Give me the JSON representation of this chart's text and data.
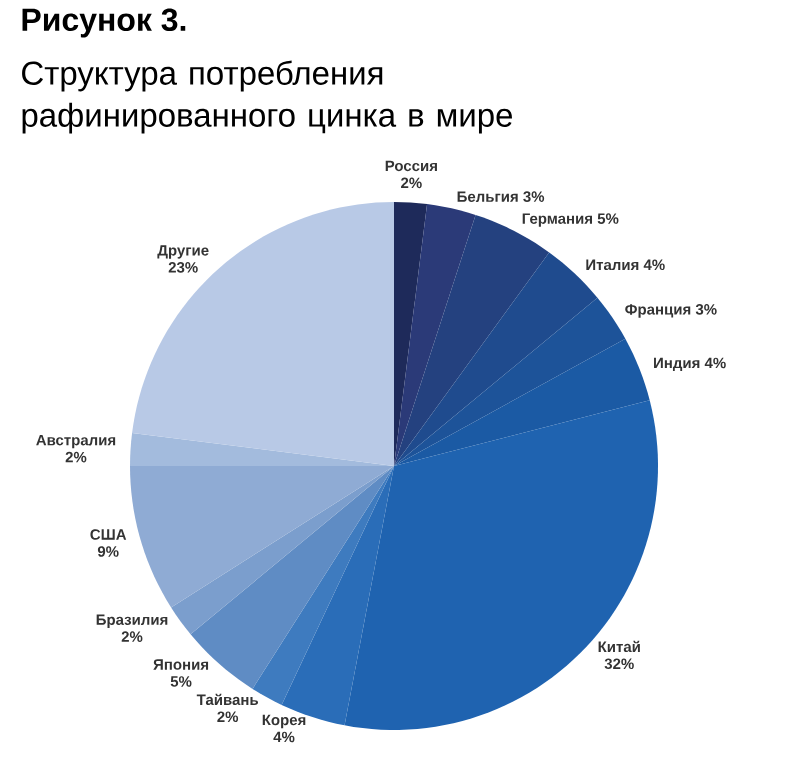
{
  "chart_data": {
    "type": "pie",
    "title": "Рисунок 3.",
    "subtitle": "Структура потребления рафинированного цинка в мире",
    "categories": [
      "Россия",
      "Бельгия",
      "Германия",
      "Италия",
      "Франция",
      "Индия",
      "Китай",
      "Корея",
      "Тайвань",
      "Япония",
      "Бразилия",
      "США",
      "Австралия",
      "Другие"
    ],
    "values": [
      2,
      3,
      5,
      4,
      3,
      4,
      32,
      4,
      2,
      5,
      2,
      9,
      2,
      23
    ],
    "colors": [
      "#1e2a5a",
      "#2b3a78",
      "#24417f",
      "#1f4b8e",
      "#1d5399",
      "#1b5aa4",
      "#1f63b0",
      "#2a6db8",
      "#3e7bbf",
      "#5f8cc4",
      "#7b9ecd",
      "#8fabd4",
      "#a3bbdd",
      "#b8c9e6"
    ],
    "value_labels": [
      "2%",
      "3%",
      "5%",
      "4%",
      "3%",
      "4%",
      "32%",
      "4%",
      "2%",
      "5%",
      "2%",
      "9%",
      "2%",
      "23%"
    ]
  }
}
